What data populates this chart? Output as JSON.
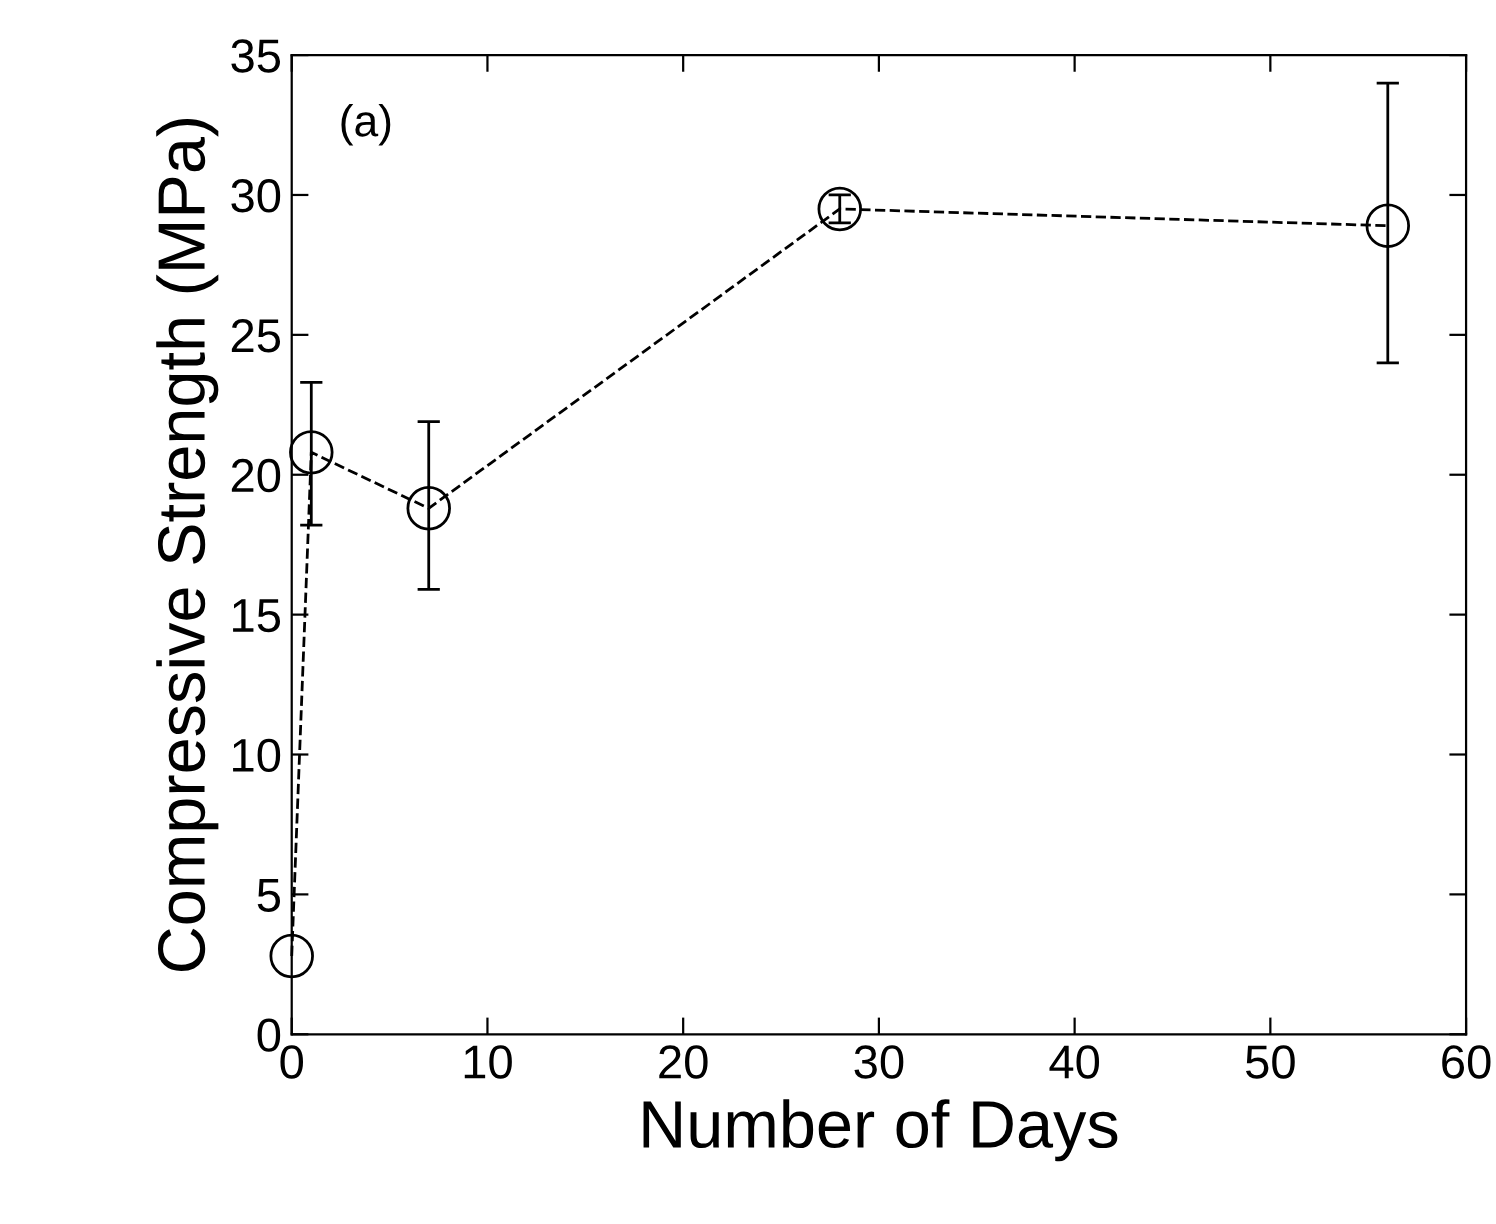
{
  "chart_data": {
    "type": "line",
    "xlabel": "Number of Days",
    "ylabel": "Compressive Strength (MPa)",
    "annotations": [
      "(a)"
    ],
    "x": [
      0,
      1,
      7,
      28,
      56
    ],
    "series": [
      {
        "color": "#000000",
        "values": [
          2.8,
          20.8,
          18.8,
          29.5,
          28.9
        ],
        "errors": [
          null,
          [
            18.2,
            23.3
          ],
          [
            15.9,
            21.9
          ],
          [
            29.0,
            30.0
          ],
          [
            24.0,
            34.0
          ]
        ]
      }
    ],
    "xlim": [
      0,
      60
    ],
    "xticks": [
      0,
      10,
      20,
      30,
      40,
      50,
      60
    ],
    "ylim": [
      0,
      35
    ],
    "yticks": [
      0,
      5,
      10,
      15,
      20,
      25,
      30,
      35
    ],
    "grid": false,
    "marker": "circle",
    "line_style": "dashed"
  }
}
